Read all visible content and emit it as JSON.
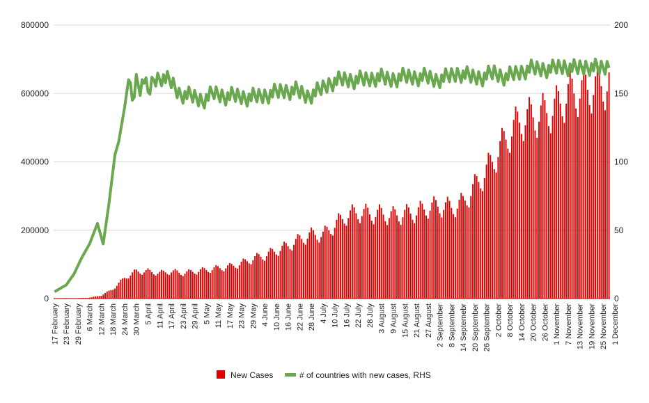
{
  "chart_data": {
    "type": "bar+line",
    "title": "",
    "xlabel": "",
    "y_left": {
      "ylim": [
        0,
        800000
      ],
      "ticks": [
        0,
        200000,
        400000,
        600000,
        800000
      ]
    },
    "y_right": {
      "ylim": [
        0,
        200
      ],
      "ticks": [
        0,
        50,
        100,
        150,
        200
      ]
    },
    "x_tick_labels": [
      "17 February",
      "23 February",
      "29 February",
      "6 March",
      "12 March",
      "18 March",
      "24 March",
      "30 March",
      "5 April",
      "11 April",
      "17 April",
      "23 April",
      "29 April",
      "5 May",
      "11 May",
      "17 May",
      "23 May",
      "29 May",
      "4 June",
      "10 June",
      "16 June",
      "22 June",
      "28 June",
      "4 July",
      "10 July",
      "16 July",
      "22 July",
      "28 July",
      "3 August",
      "9 August",
      "15 August",
      "21 August",
      "27 August",
      "2 September",
      "8 September",
      "14 Septemebr",
      "20 September",
      "26 September",
      "2 October",
      "8 October",
      "14 October",
      "20 October",
      "26 October",
      "1 November",
      "7 November",
      "13 November",
      "19 November",
      "25 November",
      "1 December"
    ],
    "bar_keypoints": [
      [
        0,
        1500
      ],
      [
        6,
        1500
      ],
      [
        12,
        1500
      ],
      [
        18,
        3000
      ],
      [
        24,
        10000
      ],
      [
        30,
        30000
      ],
      [
        36,
        65000
      ],
      [
        42,
        85000
      ],
      [
        48,
        85000
      ],
      [
        54,
        80000
      ],
      [
        60,
        85000
      ],
      [
        66,
        80000
      ],
      [
        72,
        85000
      ],
      [
        78,
        90000
      ],
      [
        84,
        95000
      ],
      [
        90,
        100000
      ],
      [
        96,
        110000
      ],
      [
        102,
        125000
      ],
      [
        108,
        135000
      ],
      [
        114,
        150000
      ],
      [
        120,
        165000
      ],
      [
        126,
        185000
      ],
      [
        132,
        200000
      ],
      [
        138,
        200000
      ],
      [
        144,
        230000
      ],
      [
        150,
        260000
      ],
      [
        156,
        270000
      ],
      [
        162,
        265000
      ],
      [
        168,
        265000
      ],
      [
        174,
        260000
      ],
      [
        180,
        265000
      ],
      [
        186,
        270000
      ],
      [
        192,
        285000
      ],
      [
        198,
        290000
      ],
      [
        204,
        285000
      ],
      [
        210,
        300000
      ],
      [
        216,
        350000
      ],
      [
        222,
        400000
      ],
      [
        228,
        460000
      ],
      [
        234,
        520000
      ],
      [
        240,
        560000
      ],
      [
        246,
        570000
      ],
      [
        252,
        580000
      ],
      [
        258,
        600000
      ],
      [
        264,
        640000
      ],
      [
        270,
        650000
      ],
      [
        276,
        660000
      ],
      [
        282,
        670000
      ],
      [
        285,
        675000
      ]
    ],
    "bar_day_count": 286,
    "gridlines": true,
    "series": [
      {
        "name": "New Cases",
        "type": "bar",
        "axis": "left",
        "color": "#e00000"
      },
      {
        "name": "# of countries with new cases, RHS",
        "type": "line",
        "axis": "right",
        "color": "#6aa84f",
        "keypoints": [
          [
            0,
            5
          ],
          [
            6,
            10
          ],
          [
            10,
            18
          ],
          [
            14,
            30
          ],
          [
            18,
            40
          ],
          [
            22,
            55
          ],
          [
            25,
            40
          ],
          [
            28,
            70
          ],
          [
            31,
            105
          ],
          [
            33,
            115
          ],
          [
            36,
            140
          ],
          [
            38,
            160
          ],
          [
            40,
            145
          ],
          [
            42,
            160
          ],
          [
            44,
            155
          ],
          [
            46,
            160
          ],
          [
            48,
            150
          ],
          [
            51,
            160
          ],
          [
            55,
            162
          ],
          [
            60,
            158
          ],
          [
            64,
            150
          ],
          [
            70,
            148
          ],
          [
            76,
            145
          ],
          [
            82,
            150
          ],
          [
            88,
            148
          ],
          [
            94,
            148
          ],
          [
            100,
            147
          ],
          [
            106,
            148
          ],
          [
            112,
            150
          ],
          [
            118,
            152
          ],
          [
            124,
            152
          ],
          [
            130,
            148
          ],
          [
            136,
            152
          ],
          [
            142,
            158
          ],
          [
            148,
            160
          ],
          [
            154,
            160
          ],
          [
            160,
            160
          ],
          [
            166,
            162
          ],
          [
            172,
            160
          ],
          [
            178,
            162
          ],
          [
            184,
            162
          ],
          [
            190,
            162
          ],
          [
            196,
            160
          ],
          [
            202,
            162
          ],
          [
            208,
            165
          ],
          [
            214,
            162
          ],
          [
            220,
            162
          ],
          [
            226,
            165
          ],
          [
            232,
            162
          ],
          [
            238,
            165
          ],
          [
            244,
            168
          ],
          [
            250,
            168
          ],
          [
            256,
            168
          ],
          [
            262,
            170
          ],
          [
            268,
            168
          ],
          [
            274,
            170
          ],
          [
            280,
            168
          ],
          [
            285,
            170
          ]
        ]
      }
    ],
    "legend": {
      "position": "bottom"
    }
  }
}
